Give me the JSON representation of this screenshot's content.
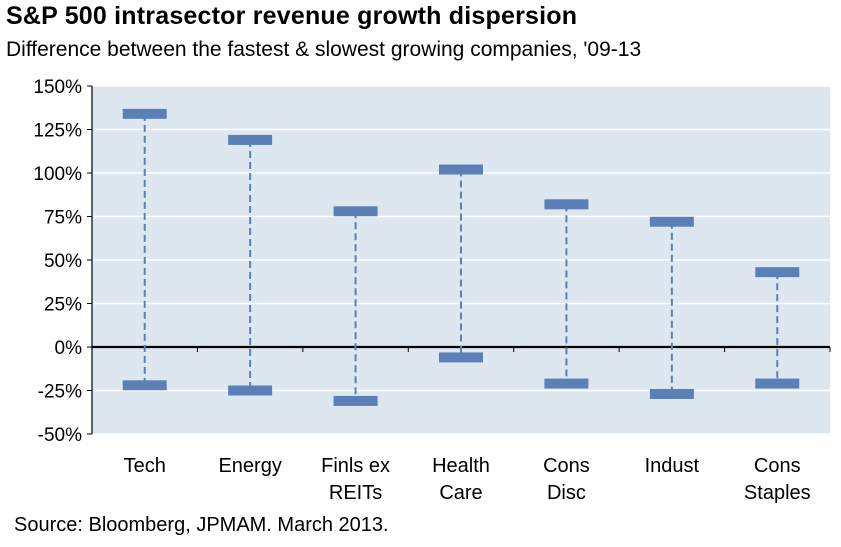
{
  "title": "S&P 500 intrasector revenue growth dispersion",
  "subtitle": "Difference between the fastest & slowest growing companies, '09-13",
  "source": "Source: Bloomberg, JPMAM. March 2013.",
  "colors": {
    "plot_background": "#dde7f0",
    "gridline": "#ffffff",
    "marker": "#5b80b7",
    "connector": "#5b80b7",
    "axis": "#000000"
  },
  "chart_data": {
    "type": "range",
    "title": "S&P 500 intrasector revenue growth dispersion",
    "subtitle": "Difference between the fastest & slowest growing companies, '09-13",
    "ylim": [
      -50,
      150
    ],
    "yticks": [
      150,
      125,
      100,
      75,
      50,
      25,
      0,
      -25,
      -50
    ],
    "ytick_labels": [
      "150%",
      "125%",
      "100%",
      "75%",
      "50%",
      "25%",
      "0%",
      "-25%",
      "-50%"
    ],
    "grid": true,
    "categories": [
      {
        "lines": [
          "Tech"
        ],
        "high": 134,
        "low": -22
      },
      {
        "lines": [
          "Energy"
        ],
        "high": 119,
        "low": -25
      },
      {
        "lines": [
          "Finls ex",
          "REITs"
        ],
        "high": 78,
        "low": -31
      },
      {
        "lines": [
          "Health",
          "Care"
        ],
        "high": 102,
        "low": -6
      },
      {
        "lines": [
          "Cons",
          "Disc"
        ],
        "high": 82,
        "low": -21
      },
      {
        "lines": [
          "Indust"
        ],
        "high": 72,
        "low": -27
      },
      {
        "lines": [
          "Cons",
          "Staples"
        ],
        "high": 43,
        "low": -21
      }
    ]
  }
}
